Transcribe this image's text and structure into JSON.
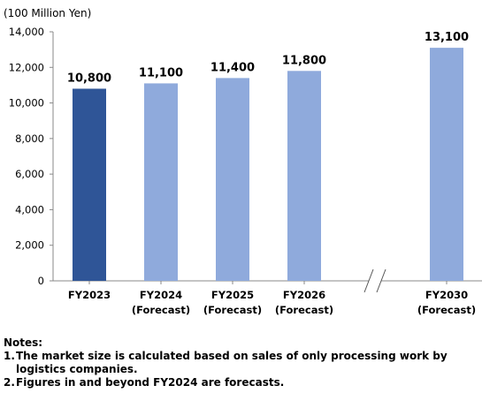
{
  "chart_data": {
    "type": "bar",
    "unit_label": "(100 Million Yen)",
    "categories": [
      {
        "line1": "FY2023",
        "line2": ""
      },
      {
        "line1": "FY2024",
        "line2": "(Forecast)"
      },
      {
        "line1": "FY2025",
        "line2": "(Forecast)"
      },
      {
        "line1": "FY2026",
        "line2": "(Forecast)"
      },
      {
        "line1": "FY2030",
        "line2": "(Forecast)"
      }
    ],
    "values": [
      10800,
      11100,
      11400,
      11800,
      13100
    ],
    "value_labels": [
      "10,800",
      "11,100",
      "11,400",
      "11,800",
      "13,100"
    ],
    "bar_colors": [
      "#2f5597",
      "#8faadc",
      "#8faadc",
      "#8faadc",
      "#8faadc"
    ],
    "ylim": [
      0,
      14000
    ],
    "yticks": [
      0,
      2000,
      4000,
      6000,
      8000,
      10000,
      12000,
      14000
    ],
    "ytick_labels": [
      "0",
      "2,000",
      "4,000",
      "6,000",
      "8,000",
      "10,000",
      "12,000",
      "14,000"
    ],
    "axis_break_before_category": 4,
    "grid": false,
    "legend": "none"
  },
  "notes": {
    "title": "Notes:",
    "items": [
      {
        "num": "1.",
        "text": "The market size is calculated based on sales of only processing work by logistics companies."
      },
      {
        "num": "2.",
        "text": "Figures in and beyond FY2024 are forecasts."
      }
    ]
  }
}
